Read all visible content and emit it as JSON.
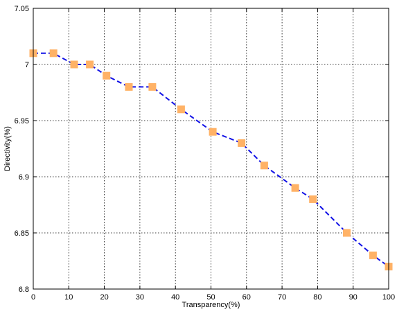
{
  "chart_data": {
    "type": "line",
    "title": "",
    "xlabel": "Transparency(%)",
    "ylabel": "Directivity(%)",
    "xlim": [
      0,
      100
    ],
    "ylim": [
      6.8,
      7.05
    ],
    "xticks": [
      "0",
      "10",
      "20",
      "30",
      "40",
      "50",
      "60",
      "70",
      "80",
      "90",
      "100"
    ],
    "yticks": [
      "6.8",
      "6.85",
      "6.9",
      "6.95",
      "7",
      "7.05"
    ],
    "grid": true,
    "legend": "none",
    "series": [
      {
        "x": [
          0,
          5.7,
          11.5,
          15.9,
          20.6,
          26.9,
          33.5,
          41.6,
          50.5,
          58.6,
          65,
          73.7,
          78.7,
          88.2,
          95.6,
          100
        ],
        "y": [
          7.01,
          7.01,
          7.0,
          7.0,
          6.99,
          6.98,
          6.98,
          6.96,
          6.94,
          6.93,
          6.91,
          6.89,
          6.88,
          6.85,
          6.83,
          6.82
        ],
        "line_color": "#1010e6",
        "line_style": "dashed",
        "marker": "square",
        "marker_color": "#ffb266"
      }
    ]
  }
}
